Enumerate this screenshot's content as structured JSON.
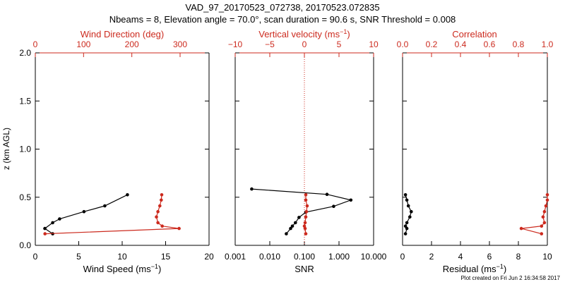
{
  "title": "VAD_97_20170523_072738, 20170523.072835",
  "subtitle": "Nbeams = 8, Elevation angle = 70.0°, scan duration = 90.6 s, SNR Threshold = 0.008",
  "footer": "Plot created on Fri Jun  2 16:34:58 2017",
  "colors": {
    "axis": "#000000",
    "red": "#cc2a1e",
    "ref_line": "#cc2a1e"
  },
  "chart_data": [
    {
      "type": "line",
      "ylabel": "z (km AGL)",
      "ylim": [
        0,
        2.0
      ],
      "yticks": [
        "0.0",
        "0.5",
        "1.0",
        "1.5",
        "2.0"
      ],
      "xlabel_bottom": "Wind Speed (ms",
      "xlabel_bottom_sup": "−1",
      "xlabel_bottom_end": ")",
      "xlim_bottom": [
        0,
        20
      ],
      "xticks_bottom": [
        "0",
        "5",
        "10",
        "15",
        "20"
      ],
      "xlabel_top": "Wind Direction (deg)",
      "xlim_top": [
        0,
        360
      ],
      "xticks_top": [
        "0",
        "100",
        "200",
        "300"
      ],
      "series": [
        {
          "axis": "bottom",
          "color": "#000000",
          "x": [
            10.6,
            8.0,
            5.6,
            2.8,
            2.0,
            1.1,
            2.0
          ],
          "y": [
            0.525,
            0.41,
            0.35,
            0.275,
            0.235,
            0.175,
            0.12
          ]
        },
        {
          "axis": "top",
          "color": "#cc2a1e",
          "x": [
            262,
            261,
            258,
            254,
            251,
            254,
            263,
            298,
            20
          ],
          "y": [
            0.525,
            0.47,
            0.41,
            0.35,
            0.295,
            0.235,
            0.2,
            0.175,
            0.12
          ]
        }
      ]
    },
    {
      "type": "line",
      "xlabel_bottom": "SNR",
      "xscale_bottom": "log",
      "xlim_bottom": [
        0.001,
        10
      ],
      "xticks_bottom": [
        "0.001",
        "0.010",
        "0.100",
        "1.000",
        "10.000"
      ],
      "xlabel_top": "Vertical velocity (ms",
      "xlabel_top_sup": "−1",
      "xlabel_top_end": ")",
      "xlim_top": [
        -10,
        10
      ],
      "xticks_top": [
        "−10",
        "−5",
        "0",
        "5",
        "10"
      ],
      "ref_line": {
        "axis": "top",
        "x": 0
      },
      "series": [
        {
          "axis": "bottom",
          "color": "#000000",
          "x": [
            0.003,
            0.45,
            2.2,
            0.7,
            0.11,
            0.07,
            0.055,
            0.045,
            0.04,
            0.03
          ],
          "y": [
            0.585,
            0.53,
            0.47,
            0.405,
            0.345,
            0.29,
            0.235,
            0.2,
            0.175,
            0.12
          ]
        },
        {
          "axis": "top",
          "color": "#cc2a1e",
          "x": [
            0.2,
            0.2,
            0.4,
            0.3,
            0.2,
            0.1,
            0.0,
            0.1,
            0.2
          ],
          "y": [
            0.525,
            0.47,
            0.41,
            0.35,
            0.295,
            0.235,
            0.2,
            0.175,
            0.12
          ]
        }
      ]
    },
    {
      "type": "line",
      "xlabel_bottom": "Residual (ms",
      "xlabel_bottom_sup": "−1",
      "xlabel_bottom_end": ")",
      "xlim_bottom": [
        0,
        10
      ],
      "xticks_bottom": [
        "0",
        "2",
        "4",
        "6",
        "8",
        "10"
      ],
      "xlabel_top": "Correlation",
      "xlim_top": [
        0,
        1.0
      ],
      "xticks_top": [
        "0.0",
        "0.2",
        "0.4",
        "0.6",
        "0.8",
        "1.0"
      ],
      "series": [
        {
          "axis": "bottom",
          "color": "#000000",
          "x": [
            0.2,
            0.3,
            0.4,
            0.6,
            0.5,
            0.3,
            0.2,
            0.3,
            0.2
          ],
          "y": [
            0.525,
            0.47,
            0.41,
            0.35,
            0.295,
            0.235,
            0.2,
            0.175,
            0.12
          ]
        },
        {
          "axis": "top",
          "color": "#cc2a1e",
          "x": [
            1.0,
            1.0,
            0.99,
            0.98,
            0.97,
            0.98,
            0.96,
            0.82,
            0.96
          ],
          "y": [
            0.525,
            0.47,
            0.41,
            0.35,
            0.295,
            0.235,
            0.2,
            0.175,
            0.12
          ]
        }
      ]
    }
  ]
}
